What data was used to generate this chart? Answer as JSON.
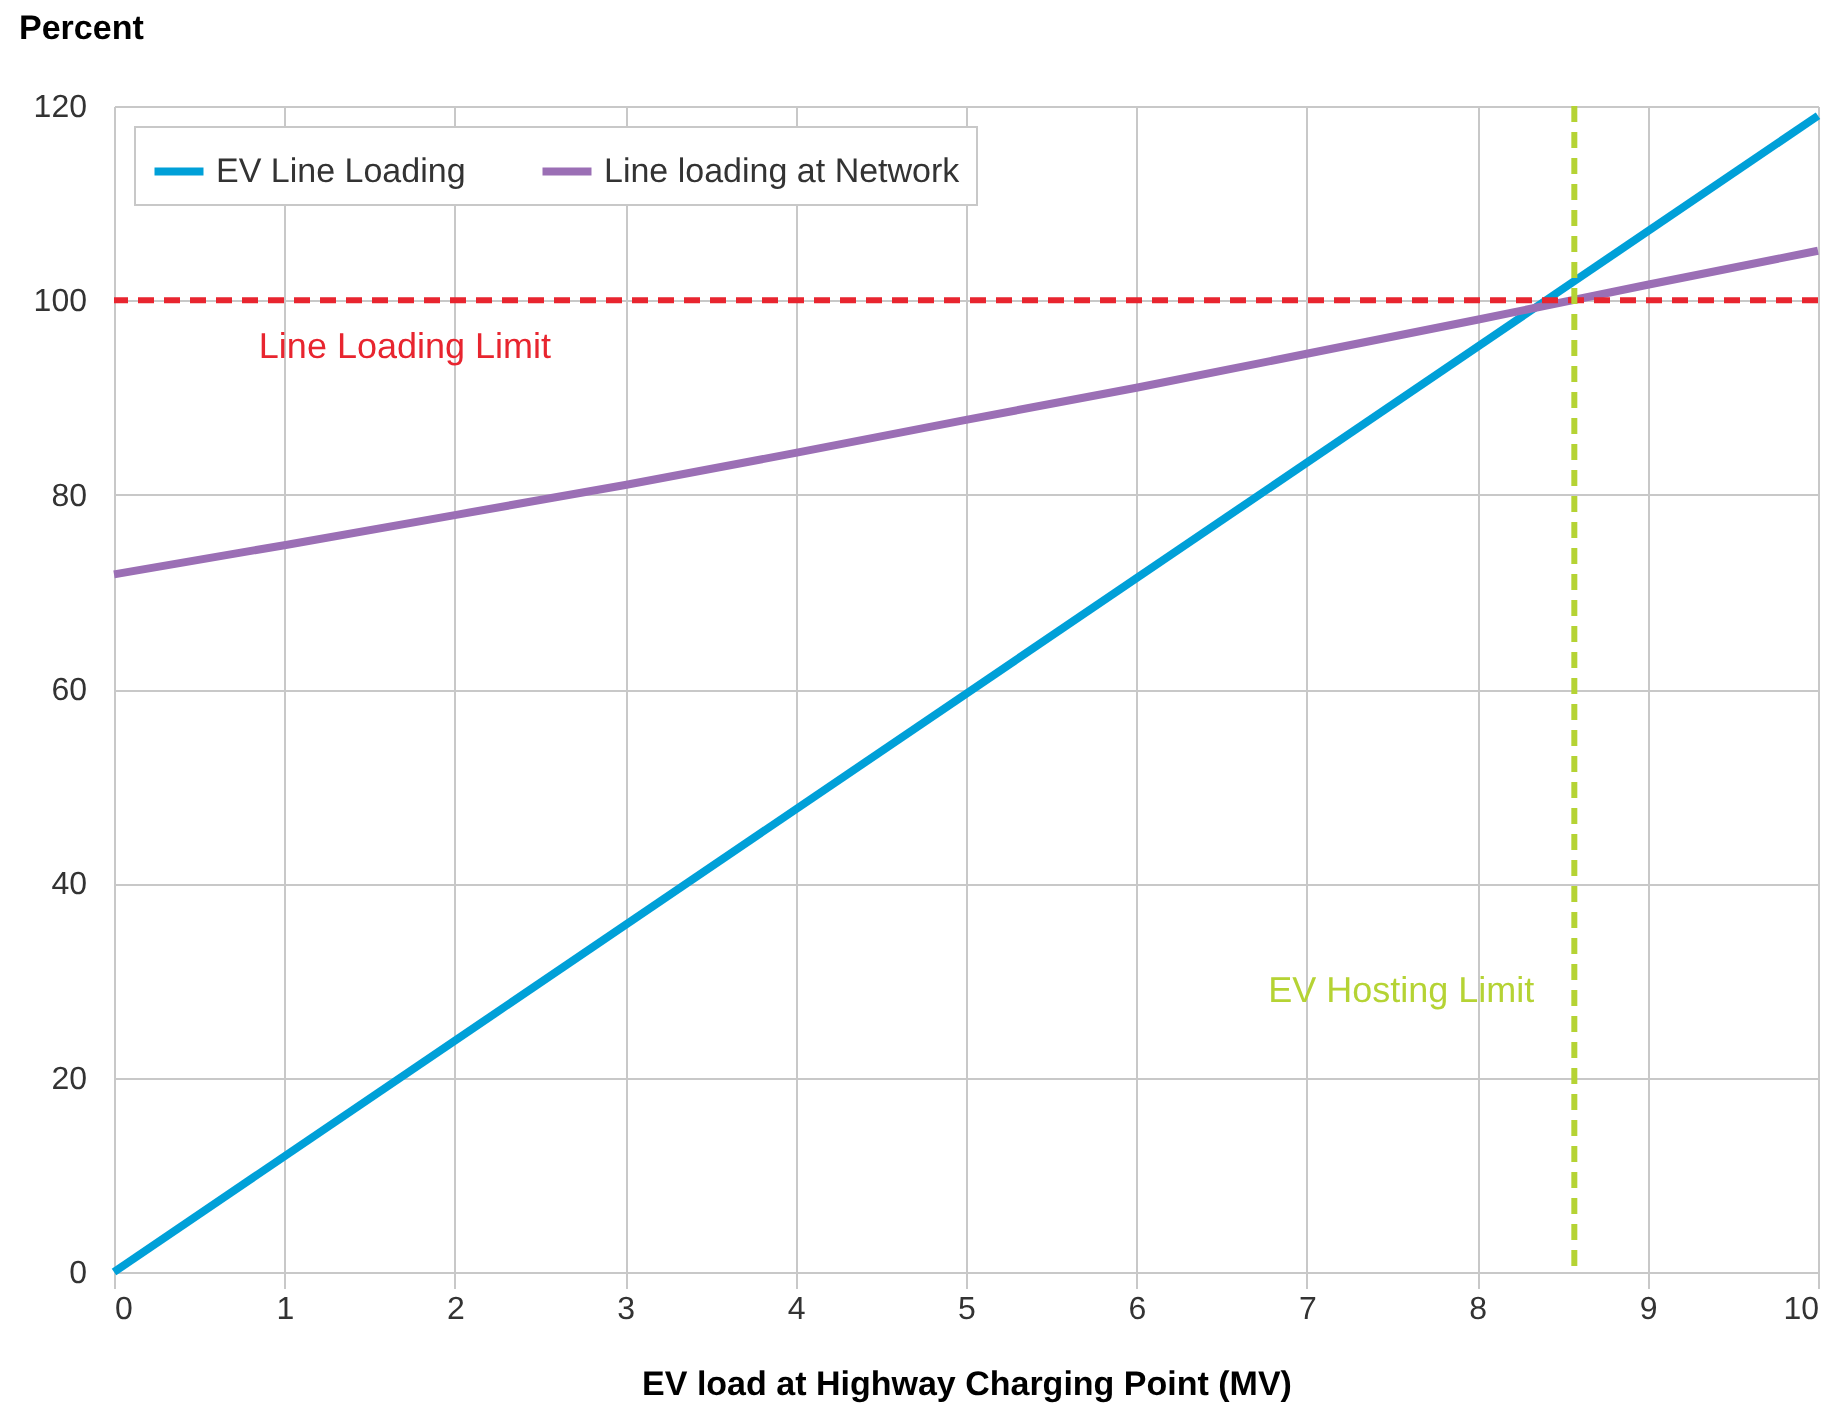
{
  "chart_data": {
    "type": "line",
    "xlabel": "EV load at Highway Charging Point (MV)",
    "ylabel": "Percent",
    "xlim": [
      0,
      10
    ],
    "ylim": [
      0,
      120
    ],
    "xticks": [
      0,
      1,
      2,
      3,
      4,
      5,
      6,
      7,
      8,
      9,
      10
    ],
    "yticks": [
      0,
      20,
      40,
      60,
      80,
      100,
      120
    ],
    "grid": true,
    "legend": "top left",
    "line_style": "solid",
    "series": [
      {
        "name": "EV Line Loading",
        "color": "#00a0d8",
        "x": [
          0,
          10
        ],
        "values": [
          0,
          119
        ]
      },
      {
        "name": "Line loading at Network",
        "color": "#9b6fb5",
        "x": [
          0,
          1,
          2,
          3,
          4,
          5,
          6,
          7,
          8,
          9,
          10
        ],
        "values": [
          71.8,
          74.8,
          77.9,
          81,
          84.3,
          87.7,
          91,
          94.5,
          98,
          101.6,
          105.1
        ]
      }
    ],
    "ref_lines": [
      {
        "axis": "y",
        "value": 100,
        "label": "Line Loading Limit",
        "color": "#e8252f",
        "line_style": "dashed"
      },
      {
        "axis": "x",
        "value": 8.57,
        "label": "EV Hosting Limit",
        "color": "#b5d334",
        "line_style": "dashed"
      }
    ]
  }
}
